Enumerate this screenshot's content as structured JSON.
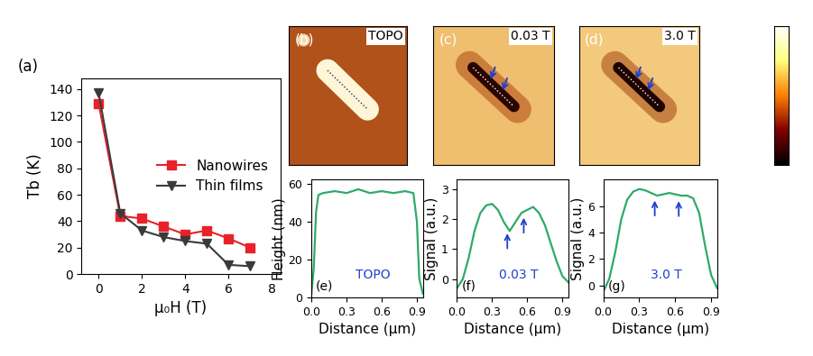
{
  "chart_data": [
    {
      "type": "line",
      "title": "(a)",
      "x_label": "μ₀H (T)",
      "y_label": "Tb (K)",
      "x": [
        0,
        1,
        2,
        3,
        4,
        5,
        6,
        7
      ],
      "series": [
        {
          "name": "Nanowires",
          "color": "#e8212b",
          "marker": "square",
          "line_style": "solid",
          "values": [
            129,
            44,
            42,
            36,
            30,
            33,
            27,
            20
          ]
        },
        {
          "name": "Thin films",
          "color": "#3a3a3a",
          "marker": "triangle_down",
          "line_style": "solid",
          "values": [
            137,
            46,
            33,
            28,
            25,
            23,
            7,
            6
          ]
        }
      ],
      "xlim": [
        -0.8,
        8.4
      ],
      "xticks": [
        0,
        2,
        4,
        6,
        8
      ],
      "ylim": [
        0,
        148
      ],
      "yticks": [
        0,
        20,
        40,
        60,
        80,
        100,
        120,
        140
      ],
      "legend": "center right"
    },
    {
      "type": "image",
      "title": "(b)",
      "label": "TOPO",
      "tick_labels": false
    },
    {
      "type": "image",
      "title": "(c)",
      "label": "0.03 T",
      "tick_labels": false
    },
    {
      "type": "image",
      "title": "(d)",
      "label": "3.0 T",
      "tick_labels": false
    },
    {
      "type": "line",
      "title": "(e)",
      "annotation": "TOPO",
      "x_label": "Distance (μm)",
      "y_label": "Height (nm)",
      "x": [
        0,
        0.02,
        0.04,
        0.06,
        0.1,
        0.2,
        0.3,
        0.4,
        0.5,
        0.6,
        0.7,
        0.8,
        0.87,
        0.9,
        0.92,
        0.95
      ],
      "values": [
        2,
        15,
        45,
        54,
        55,
        56,
        55,
        57,
        55,
        56,
        55,
        56,
        55,
        40,
        10,
        2
      ],
      "color": "#2eaa6a",
      "xlim": [
        0,
        0.95
      ],
      "xticks": [
        {
          "value": 0,
          "label": "0.0"
        },
        0.3,
        0.6,
        0.9
      ],
      "ylim": [
        0,
        62
      ],
      "yticks": [
        0,
        20,
        40,
        60
      ]
    },
    {
      "type": "line",
      "title": "(f)",
      "annotation": "0.03 T",
      "x_label": "Distance (μm)",
      "y_label": "Signal (a.u.)",
      "x": [
        0,
        0.05,
        0.1,
        0.15,
        0.2,
        0.25,
        0.3,
        0.35,
        0.4,
        0.45,
        0.5,
        0.55,
        0.6,
        0.65,
        0.7,
        0.75,
        0.8,
        0.85,
        0.9,
        0.95
      ],
      "values": [
        -0.3,
        0,
        0.7,
        1.6,
        2.2,
        2.45,
        2.5,
        2.3,
        1.9,
        1.6,
        1.9,
        2.2,
        2.3,
        2.4,
        2.2,
        1.8,
        1.2,
        0.6,
        0.1,
        -0.1
      ],
      "color": "#2eaa6a",
      "arrows": [
        0.43,
        0.57
      ],
      "xlim": [
        0,
        0.95
      ],
      "xticks": [
        {
          "value": 0,
          "label": "0.0"
        },
        0.3,
        0.6,
        0.9
      ],
      "ylim": [
        -0.6,
        3.3
      ],
      "yticks": [
        0,
        1,
        2,
        3
      ]
    },
    {
      "type": "line",
      "title": "(g)",
      "annotation": "3.0 T",
      "x_label": "Distance (μm)",
      "y_label": "Signal (a.u.)",
      "x": [
        0,
        0.05,
        0.1,
        0.15,
        0.2,
        0.25,
        0.3,
        0.35,
        0.4,
        0.45,
        0.5,
        0.55,
        0.6,
        0.65,
        0.7,
        0.75,
        0.8,
        0.85,
        0.9,
        0.95
      ],
      "values": [
        -0.5,
        0.5,
        2.5,
        5,
        6.5,
        7.1,
        7.3,
        7.2,
        7.0,
        6.8,
        6.9,
        7.0,
        6.9,
        6.8,
        6.8,
        6.6,
        5.5,
        3,
        0.8,
        -0.2
      ],
      "color": "#2eaa6a",
      "arrows": [
        0.43,
        0.63
      ],
      "xlim": [
        0,
        0.95
      ],
      "xticks": [
        {
          "value": 0,
          "label": "0.0"
        },
        0.3,
        0.6,
        0.9
      ],
      "ylim": [
        -0.9,
        8
      ],
      "yticks": [
        0,
        2,
        4,
        6
      ]
    }
  ]
}
